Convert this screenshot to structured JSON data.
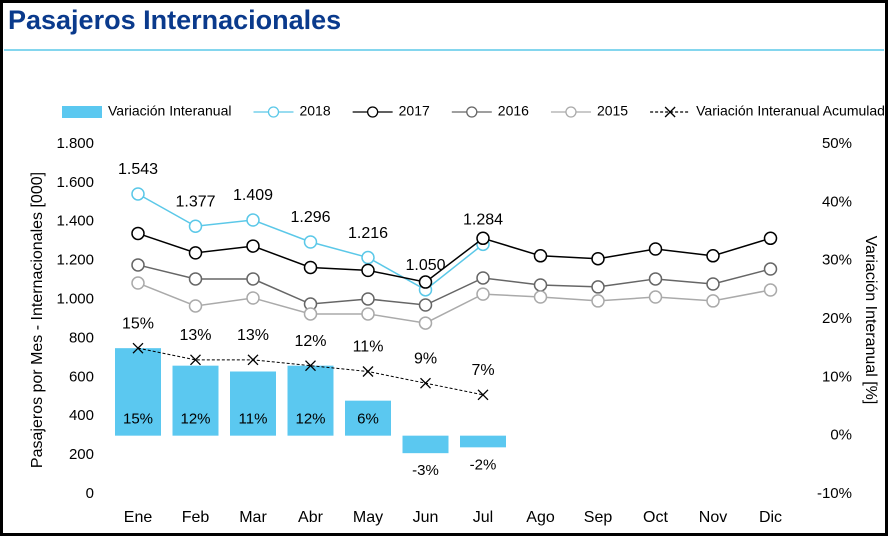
{
  "title": "Pasajeros Internacionales",
  "chart_data": {
    "type": "combo",
    "categories": [
      "Ene",
      "Feb",
      "Mar",
      "Abr",
      "May",
      "Jun",
      "Jul",
      "Ago",
      "Sep",
      "Oct",
      "Nov",
      "Dic"
    ],
    "ylabel": "Pasajeros por Mes - Internacionales [000]",
    "y2label": "Variación Interanual [%]",
    "ylim": [
      0,
      1800
    ],
    "yticks": [
      0,
      200,
      400,
      600,
      800,
      {
        "value": 1000,
        "label": "1.000"
      },
      {
        "value": 1200,
        "label": "1.200"
      },
      {
        "value": 1400,
        "label": "1.400"
      },
      {
        "value": 1600,
        "label": "1.600"
      },
      {
        "value": 1800,
        "label": "1.800"
      }
    ],
    "y2lim": [
      -10,
      50
    ],
    "y2ticks": [
      {
        "value": -10,
        "label": "-10%"
      },
      {
        "value": 0,
        "label": "0%"
      },
      {
        "value": 10,
        "label": "10%"
      },
      {
        "value": 20,
        "label": "20%"
      },
      {
        "value": 30,
        "label": "30%"
      },
      {
        "value": 40,
        "label": "40%"
      },
      {
        "value": 50,
        "label": "50%"
      }
    ],
    "legend": "top",
    "series": [
      {
        "name": "Variación Interanual",
        "type": "bar",
        "axis": "y2",
        "color": "#5bc8f0",
        "values": [
          15,
          12,
          11,
          12,
          6,
          -3,
          -2,
          null,
          null,
          null,
          null,
          null
        ],
        "value_labels": [
          "15%",
          "12%",
          "11%",
          "12%",
          "6%",
          "-3%",
          "-2%",
          null,
          null,
          null,
          null,
          null
        ]
      },
      {
        "name": "2018",
        "type": "line",
        "color": "#5bc8e8",
        "values": [
          1543,
          1377,
          1409,
          1296,
          1216,
          1050,
          1284,
          null,
          null,
          null,
          null,
          null
        ],
        "value_labels": [
          "1.543",
          "1.377",
          "1.409",
          "1.296",
          "1.216",
          "1.050",
          "1.284",
          null,
          null,
          null,
          null,
          null
        ]
      },
      {
        "name": "2017",
        "type": "line",
        "color": "#000000",
        "values": [
          1340,
          1240,
          1275,
          1165,
          1150,
          1090,
          1315,
          1225,
          1210,
          1260,
          1225,
          1315
        ]
      },
      {
        "name": "2016",
        "type": "line",
        "color": "#666666",
        "values": [
          1178,
          1106,
          1106,
          977,
          1003,
          972,
          1111,
          1075,
          1065,
          1106,
          1080,
          1157
        ]
      },
      {
        "name": "2015",
        "type": "line",
        "color": "#aaaaaa",
        "values": [
          1085,
          967,
          1008,
          926,
          926,
          879,
          1028,
          1013,
          993,
          1013,
          993,
          1049
        ]
      },
      {
        "name": "Variación Interanual Acumulada",
        "type": "line",
        "axis": "y2",
        "color": "#000000",
        "dashed": true,
        "marker": "x",
        "values": [
          15,
          13,
          13,
          12,
          11,
          9,
          7,
          null,
          null,
          null,
          null,
          null
        ],
        "value_labels": [
          "15%",
          "13%",
          "13%",
          "12%",
          "11%",
          "9%",
          "7%",
          null,
          null,
          null,
          null,
          null
        ]
      }
    ]
  }
}
